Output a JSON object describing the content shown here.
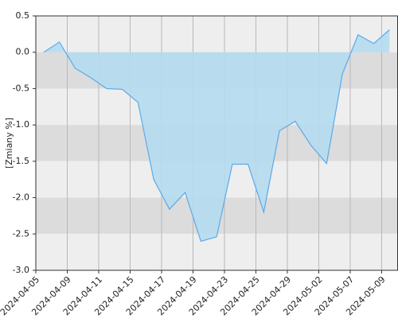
{
  "chart_data": {
    "type": "area",
    "ylabel": "[Zmiany %]",
    "x": [
      0,
      1,
      2,
      3,
      4,
      5,
      6,
      7,
      8,
      9,
      10,
      11,
      12,
      13,
      14,
      15,
      16,
      17,
      18,
      19,
      20,
      21,
      22
    ],
    "series": [
      {
        "color": "#5aa9ec",
        "fill": "#b4dcee",
        "values": [
          0,
          0.14,
          -0.22,
          -0.35,
          -0.5,
          -0.51,
          -0.69,
          -1.75,
          -2.16,
          -1.93,
          -2.6,
          -2.54,
          -1.54,
          -1.54,
          -2.2,
          -1.08,
          -0.95,
          -1.28,
          -1.53,
          -0.3,
          0.24,
          0.12,
          0.31
        ]
      }
    ],
    "xlim": [
      -0.5,
      22.54
    ],
    "xticks": [
      {
        "value": -0.5,
        "label": "2024-04-05"
      },
      {
        "value": 1.5,
        "label": "2024-04-09"
      },
      {
        "value": 3.5,
        "label": "2024-04-11"
      },
      {
        "value": 5.5,
        "label": "2024-04-15"
      },
      {
        "value": 7.5,
        "label": "2024-04-17"
      },
      {
        "value": 9.5,
        "label": "2024-04-19"
      },
      {
        "value": 11.5,
        "label": "2024-04-23"
      },
      {
        "value": 13.5,
        "label": "2024-04-25"
      },
      {
        "value": 15.5,
        "label": "2024-04-29"
      },
      {
        "value": 17.5,
        "label": "2024-05-02"
      },
      {
        "value": 19.5,
        "label": "2024-05-07"
      },
      {
        "value": 21.5,
        "label": "2024-05-09"
      }
    ],
    "ylim": [
      -3,
      0.5
    ],
    "yticks": [
      {
        "value": 0.5,
        "label": "0.5"
      },
      {
        "value": 0,
        "label": "0.0"
      },
      {
        "value": -0.5,
        "label": "-0.5"
      },
      {
        "value": -1,
        "label": "-1.0"
      },
      {
        "value": -1.5,
        "label": "-1.5"
      },
      {
        "value": -2,
        "label": "-2.0"
      },
      {
        "value": -2.5,
        "label": "-2.5"
      },
      {
        "value": -3,
        "label": "-3.0"
      }
    ],
    "grid": true
  }
}
